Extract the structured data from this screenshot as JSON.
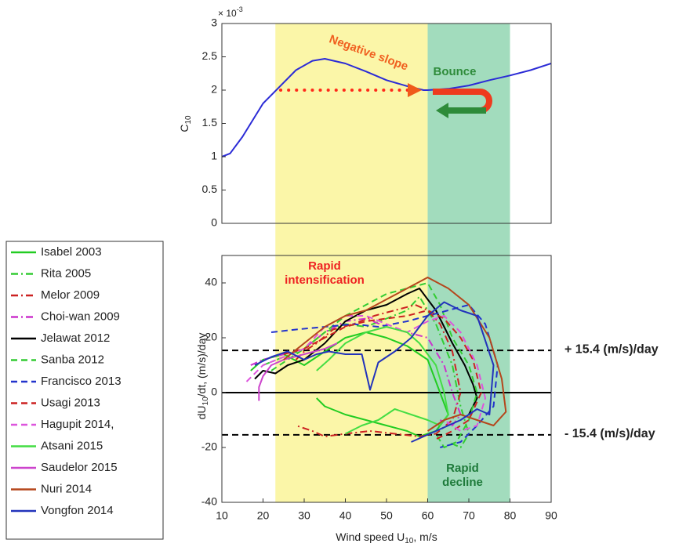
{
  "chart_data": [
    {
      "type": "line",
      "ylabel": {
        "main": "C",
        "sub": "10"
      },
      "exponent": {
        "base": "× 10",
        "power": "-3"
      },
      "x": [
        10,
        12,
        15,
        18,
        20,
        24,
        28,
        32,
        35,
        40,
        45,
        50,
        55,
        59,
        60,
        65,
        70,
        75,
        80,
        85,
        90
      ],
      "values": [
        1,
        1.05,
        1.3,
        1.6,
        1.8,
        2.05,
        2.3,
        2.44,
        2.47,
        2.4,
        2.28,
        2.15,
        2.06,
        2.0,
        2.0,
        2.02,
        2.07,
        2.15,
        2.22,
        2.3,
        2.4
      ],
      "color": "#2b2bd6",
      "xlim": [
        10,
        90
      ],
      "ylim": [
        0,
        3
      ],
      "yticks": [
        0,
        0.5,
        1,
        1.5,
        2,
        2.5,
        3
      ],
      "shading": [
        {
          "xlim": [
            23,
            60
          ],
          "color": "#fbf6a8"
        },
        {
          "xlim": [
            60,
            80
          ],
          "color": "#a2dcbd"
        }
      ],
      "annotations": {
        "negative": "Negative slope",
        "bounce": "Bounce"
      }
    },
    {
      "type": "line",
      "xlabel": {
        "main": "Wind speed U",
        "sub": "10",
        "rest": ", m/s"
      },
      "ylabel": {
        "main": "dU",
        "sub": "10",
        "rest": "/dt, (m/s)/day"
      },
      "xlim": [
        10,
        90
      ],
      "ylim": [
        -40,
        50
      ],
      "xticks": [
        10,
        20,
        30,
        40,
        50,
        60,
        70,
        80,
        90
      ],
      "yticks": [
        -40,
        -20,
        0,
        20,
        40
      ],
      "hlines": [
        {
          "value": 15.4,
          "label": "+ 15.4 (m/s)/day",
          "style": "dashed"
        },
        {
          "value": -15.4,
          "label": "- 15.4 (m/s)/day",
          "style": "dashed"
        },
        {
          "value": 0,
          "style": "solid"
        }
      ],
      "annotations": {
        "intensification": [
          "Rapid",
          "intensification"
        ],
        "decline": [
          "Rapid",
          "decline"
        ]
      },
      "series": [
        {
          "name": "Isabel 2003",
          "color": "#22cc22",
          "dash": "solid",
          "x": [
            17,
            20,
            25,
            30,
            35,
            40,
            45,
            50,
            55,
            60,
            63,
            65,
            62,
            58,
            55,
            50,
            45,
            40,
            35,
            33
          ],
          "values": [
            8,
            12,
            14,
            10,
            15,
            20,
            22,
            20,
            17,
            12,
            0,
            -8,
            -14,
            -16,
            -14,
            -12,
            -10,
            -8,
            -5,
            -2
          ]
        },
        {
          "name": "Rita 2005",
          "color": "#33cc33",
          "dash": "dashdot",
          "x": [
            20,
            25,
            30,
            35,
            40,
            45,
            50,
            55,
            58,
            62,
            66,
            68,
            70,
            68,
            65
          ],
          "values": [
            10,
            13,
            16,
            22,
            25,
            24,
            27,
            30,
            35,
            25,
            10,
            -5,
            -15,
            -20,
            -18
          ]
        },
        {
          "name": "Melor 2009",
          "color": "#cc2222",
          "dash": "dashdot",
          "x": [
            28,
            30,
            33,
            37,
            42,
            47,
            52,
            57,
            60,
            63,
            66,
            68,
            66,
            62,
            58,
            52,
            46,
            40,
            35,
            32,
            28
          ],
          "values": [
            12,
            15,
            18,
            23,
            25,
            28,
            30,
            32,
            30,
            25,
            15,
            0,
            -10,
            -15,
            -16,
            -15,
            -14,
            -15,
            -16,
            -14,
            -12
          ]
        },
        {
          "name": "Choi-wan 2009",
          "color": "#cc33cc",
          "dash": "dashdot",
          "x": [
            17,
            20,
            25,
            30,
            35,
            40,
            45,
            50,
            55,
            60,
            64,
            66,
            68,
            66,
            63
          ],
          "values": [
            10,
            12,
            14,
            16,
            22,
            26,
            27,
            24,
            22,
            20,
            10,
            0,
            -8,
            -12,
            -10
          ]
        },
        {
          "name": "Jelawat 2012",
          "color": "#000000",
          "dash": "solid",
          "x": [
            18,
            20,
            23,
            26,
            30,
            35,
            40,
            45,
            50,
            55,
            58,
            62,
            66,
            69,
            71,
            72,
            70
          ],
          "values": [
            5,
            8,
            7,
            10,
            12,
            18,
            26,
            30,
            32,
            36,
            38,
            30,
            18,
            10,
            3,
            -2,
            -8
          ]
        },
        {
          "name": "Sanba 2012",
          "color": "#33cc33",
          "dash": "dashed",
          "x": [
            22,
            26,
            30,
            35,
            40,
            45,
            50,
            55,
            60,
            63,
            66,
            70,
            72,
            70,
            67,
            64,
            62
          ],
          "values": [
            8,
            12,
            16,
            22,
            28,
            32,
            36,
            38,
            40,
            32,
            20,
            10,
            0,
            -10,
            -18,
            -20,
            -15
          ]
        },
        {
          "name": "Francisco 2013",
          "color": "#2233cc",
          "dash": "dashed",
          "x": [
            22,
            28,
            35,
            42,
            48,
            55,
            60,
            65,
            70,
            74,
            77,
            76,
            72,
            68,
            63
          ],
          "values": [
            22,
            23,
            24,
            25,
            24,
            26,
            28,
            30,
            32,
            25,
            10,
            -5,
            -12,
            -18,
            -20
          ]
        },
        {
          "name": "Usagi 2013",
          "color": "#cc2222",
          "dash": "dashed",
          "x": [
            25,
            30,
            35,
            40,
            45,
            50,
            55,
            60,
            64,
            68,
            71,
            73,
            70,
            66,
            62
          ],
          "values": [
            14,
            16,
            20,
            24,
            26,
            27,
            28,
            30,
            27,
            20,
            12,
            0,
            -10,
            -14,
            -17
          ]
        },
        {
          "name": "Hagupit 2014,",
          "color": "#dd55dd",
          "dash": "dashed",
          "x": [
            16,
            20,
            25,
            30,
            35,
            40,
            45,
            50,
            55,
            60,
            64,
            68,
            72,
            74,
            72,
            68,
            64
          ],
          "values": [
            4,
            10,
            13,
            16,
            24,
            28,
            28,
            25,
            22,
            26,
            28,
            22,
            10,
            -2,
            -12,
            -14,
            -10
          ]
        },
        {
          "name": "Atsani 2015",
          "color": "#44dd44",
          "dash": "solid",
          "x": [
            33,
            36,
            40,
            45,
            50,
            55,
            58,
            62,
            64,
            65,
            63,
            60,
            56,
            52,
            48,
            44,
            40
          ],
          "values": [
            8,
            12,
            18,
            22,
            24,
            22,
            18,
            10,
            0,
            -8,
            -12,
            -10,
            -8,
            -6,
            -10,
            -12,
            -15
          ]
        },
        {
          "name": "Saudelor 2015",
          "color": "#cc44cc",
          "dash": "solid",
          "x": [
            19,
            19,
            20,
            22,
            25,
            30,
            35,
            38
          ],
          "values": [
            -3,
            2,
            6,
            10,
            12,
            14,
            16,
            18
          ]
        },
        {
          "name": "Nuri 2014",
          "color": "#b5461c",
          "dash": "solid",
          "x": [
            25,
            30,
            35,
            40,
            45,
            50,
            55,
            60,
            65,
            70,
            75,
            78,
            79,
            76,
            72,
            68,
            64,
            60
          ],
          "values": [
            12,
            18,
            24,
            28,
            30,
            34,
            38,
            42,
            38,
            32,
            20,
            5,
            -7,
            -12,
            -10,
            -8,
            -10,
            -14
          ]
        },
        {
          "name": "Vongfon 2014",
          "color": "#2233bb",
          "dash": "solid",
          "x": [
            18,
            22,
            26,
            30,
            33,
            36,
            40,
            44,
            46,
            48,
            52,
            56,
            60,
            64,
            68,
            72,
            76,
            75,
            72,
            68,
            62,
            56
          ],
          "values": [
            10,
            13,
            15,
            12,
            14,
            15,
            14,
            14,
            1,
            11,
            15,
            20,
            28,
            33,
            30,
            28,
            10,
            -8,
            -6,
            -10,
            -14,
            -18
          ]
        }
      ]
    }
  ]
}
